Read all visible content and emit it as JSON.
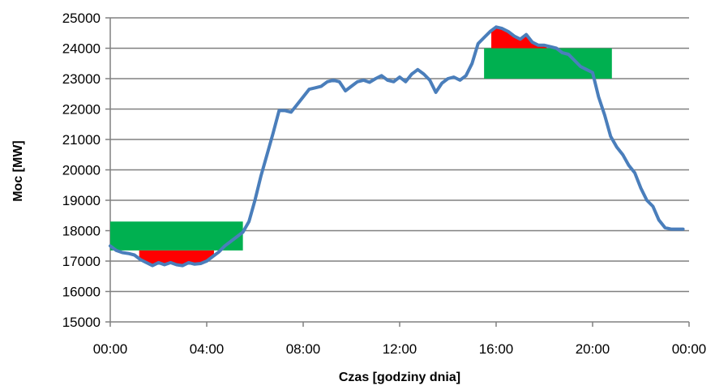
{
  "chart_data": {
    "type": "line",
    "xlabel": "Czas [godziny dnia]",
    "ylabel": "Moc [MW]",
    "ylim": [
      15000,
      25000
    ],
    "y_ticks": [
      15000,
      16000,
      17000,
      18000,
      19000,
      20000,
      21000,
      22000,
      23000,
      24000,
      25000
    ],
    "xlim": [
      0,
      24
    ],
    "x_ticks": [
      0,
      4,
      8,
      12,
      16,
      20,
      24
    ],
    "x_tick_labels": [
      "00:00",
      "04:00",
      "08:00",
      "12:00",
      "16:00",
      "20:00",
      "00:00"
    ],
    "grid": true,
    "colors": {
      "line": "#4a7ebb",
      "fill_green": "#00b050",
      "fill_red": "#ff0000",
      "grid": "#808080"
    },
    "series": [
      {
        "x": [
          0,
          0.25,
          0.5,
          0.75,
          1.0,
          1.25,
          1.5,
          1.75,
          2.0,
          2.25,
          2.5,
          2.75,
          3.0,
          3.25,
          3.5,
          3.75,
          4.0,
          4.25,
          4.5,
          4.75,
          5.0,
          5.25,
          5.5,
          5.75,
          6.0,
          6.25,
          6.5,
          6.75,
          7.0,
          7.25,
          7.5,
          7.75,
          8.0,
          8.25,
          8.5,
          8.75,
          9.0,
          9.25,
          9.5,
          9.75,
          10.0,
          10.25,
          10.5,
          10.75,
          11.0,
          11.25,
          11.5,
          11.75,
          12.0,
          12.25,
          12.5,
          12.75,
          13.0,
          13.25,
          13.5,
          13.75,
          14.0,
          14.25,
          14.5,
          14.75,
          15.0,
          15.25,
          15.5,
          15.75,
          16.0,
          16.25,
          16.5,
          16.75,
          17.0,
          17.25,
          17.5,
          17.75,
          18.0,
          18.25,
          18.5,
          18.75,
          19.0,
          19.25,
          19.5,
          19.75,
          20.0,
          20.25,
          20.5,
          20.75,
          21.0,
          21.25,
          21.5,
          21.75,
          22.0,
          22.25,
          22.5,
          22.75,
          23.0,
          23.25,
          23.5,
          23.75
        ],
        "y": [
          17500,
          17350,
          17280,
          17250,
          17200,
          17050,
          16950,
          16850,
          16950,
          16880,
          16950,
          16880,
          16850,
          16950,
          16900,
          16920,
          17000,
          17150,
          17300,
          17500,
          17650,
          17800,
          17950,
          18300,
          19000,
          19800,
          20500,
          21200,
          21950,
          21950,
          21900,
          22150,
          22400,
          22650,
          22700,
          22750,
          22900,
          22950,
          22900,
          22600,
          22750,
          22900,
          22950,
          22880,
          23000,
          23100,
          22950,
          22900,
          23050,
          22900,
          23150,
          23300,
          23150,
          22950,
          22550,
          22850,
          23000,
          23050,
          22950,
          23100,
          23500,
          24150,
          24350,
          24550,
          24700,
          24650,
          24550,
          24400,
          24300,
          24450,
          24200,
          24100,
          24100,
          24050,
          24000,
          23850,
          23800,
          23600,
          23400,
          23300,
          23200,
          22400,
          21800,
          21100,
          20750,
          20500,
          20150,
          19900,
          19400,
          19000,
          18800,
          18350,
          18100,
          18050,
          18050,
          18050
        ]
      }
    ],
    "bands": [
      {
        "x_from": 0,
        "x_to": 5.5,
        "y_from": 17350,
        "y_to": 18300,
        "color": "green"
      },
      {
        "x_from": 1.2,
        "x_to": 4.3,
        "y_from": "line",
        "y_to": 17350,
        "color": "red"
      },
      {
        "x_from": 15.5,
        "x_to": 20.8,
        "y_from": 23000,
        "y_to": 24000,
        "color": "green"
      },
      {
        "x_from": 15.8,
        "x_to": 18.1,
        "y_from": 24000,
        "y_to": "line",
        "color": "red"
      }
    ]
  }
}
